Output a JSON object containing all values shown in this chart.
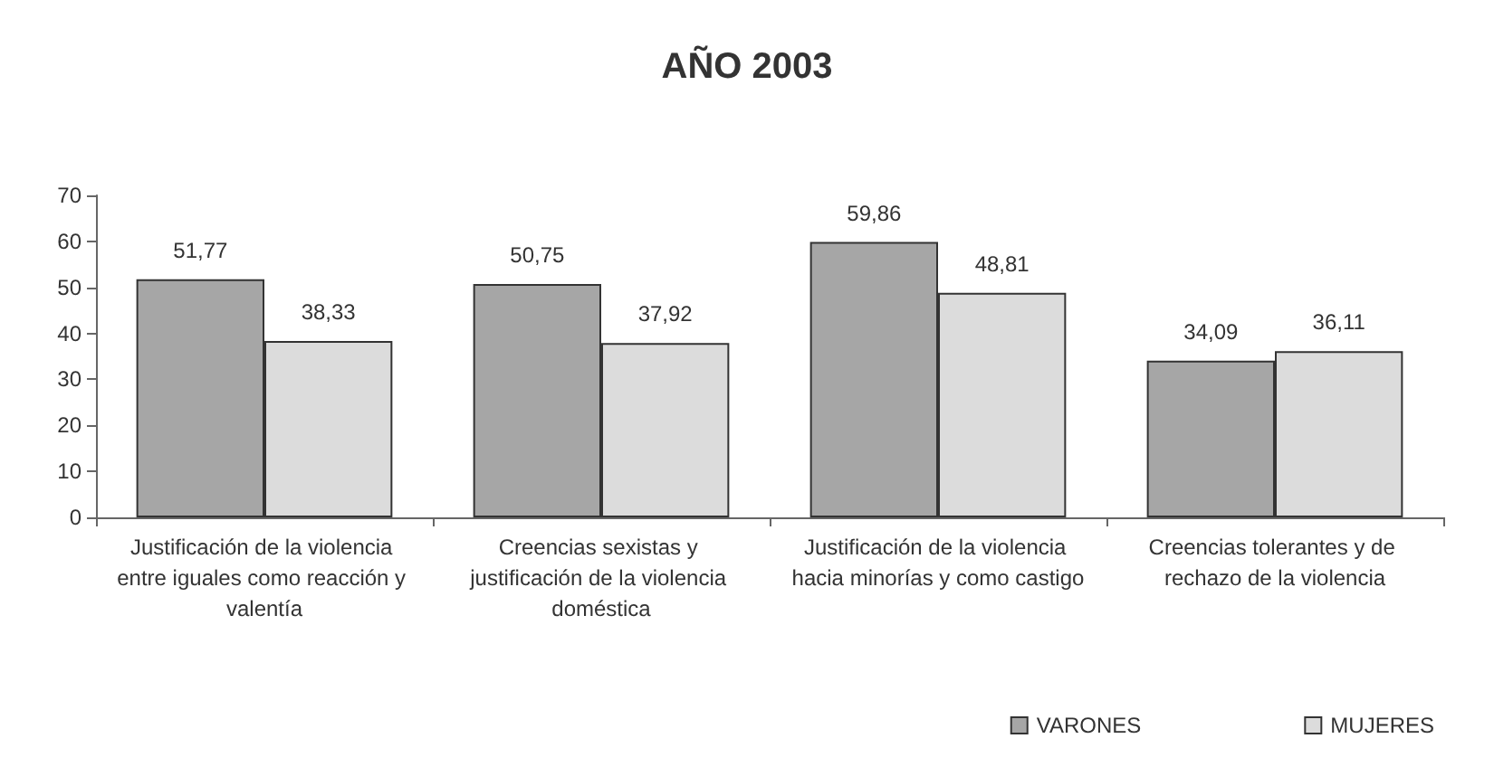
{
  "chart_data": {
    "type": "bar",
    "title": "AÑO 2003",
    "categories": [
      "Justificación de la violencia entre iguales como reacción y valentía",
      "Creencias sexistas y justificación de la violencia doméstica",
      "Justificación de la violencia hacia minorías y como castigo",
      "Creencias tolerantes y de rechazo de la violencia"
    ],
    "series": [
      {
        "name": "VARONES",
        "color": "#a6a6a6",
        "values": [
          51.77,
          50.75,
          59.86,
          34.09
        ],
        "value_labels": [
          "51,77",
          "50,75",
          "59,86",
          "34,09"
        ]
      },
      {
        "name": "MUJERES",
        "color": "#dcdcdc",
        "values": [
          38.33,
          37.92,
          48.81,
          36.11
        ],
        "value_labels": [
          "38,33",
          "37,92",
          "48,81",
          "36,11"
        ]
      }
    ],
    "ylim": [
      0,
      70
    ],
    "yticks": [
      0,
      10,
      20,
      30,
      40,
      50,
      60,
      70
    ],
    "grid": false,
    "legend": "bottom right"
  }
}
